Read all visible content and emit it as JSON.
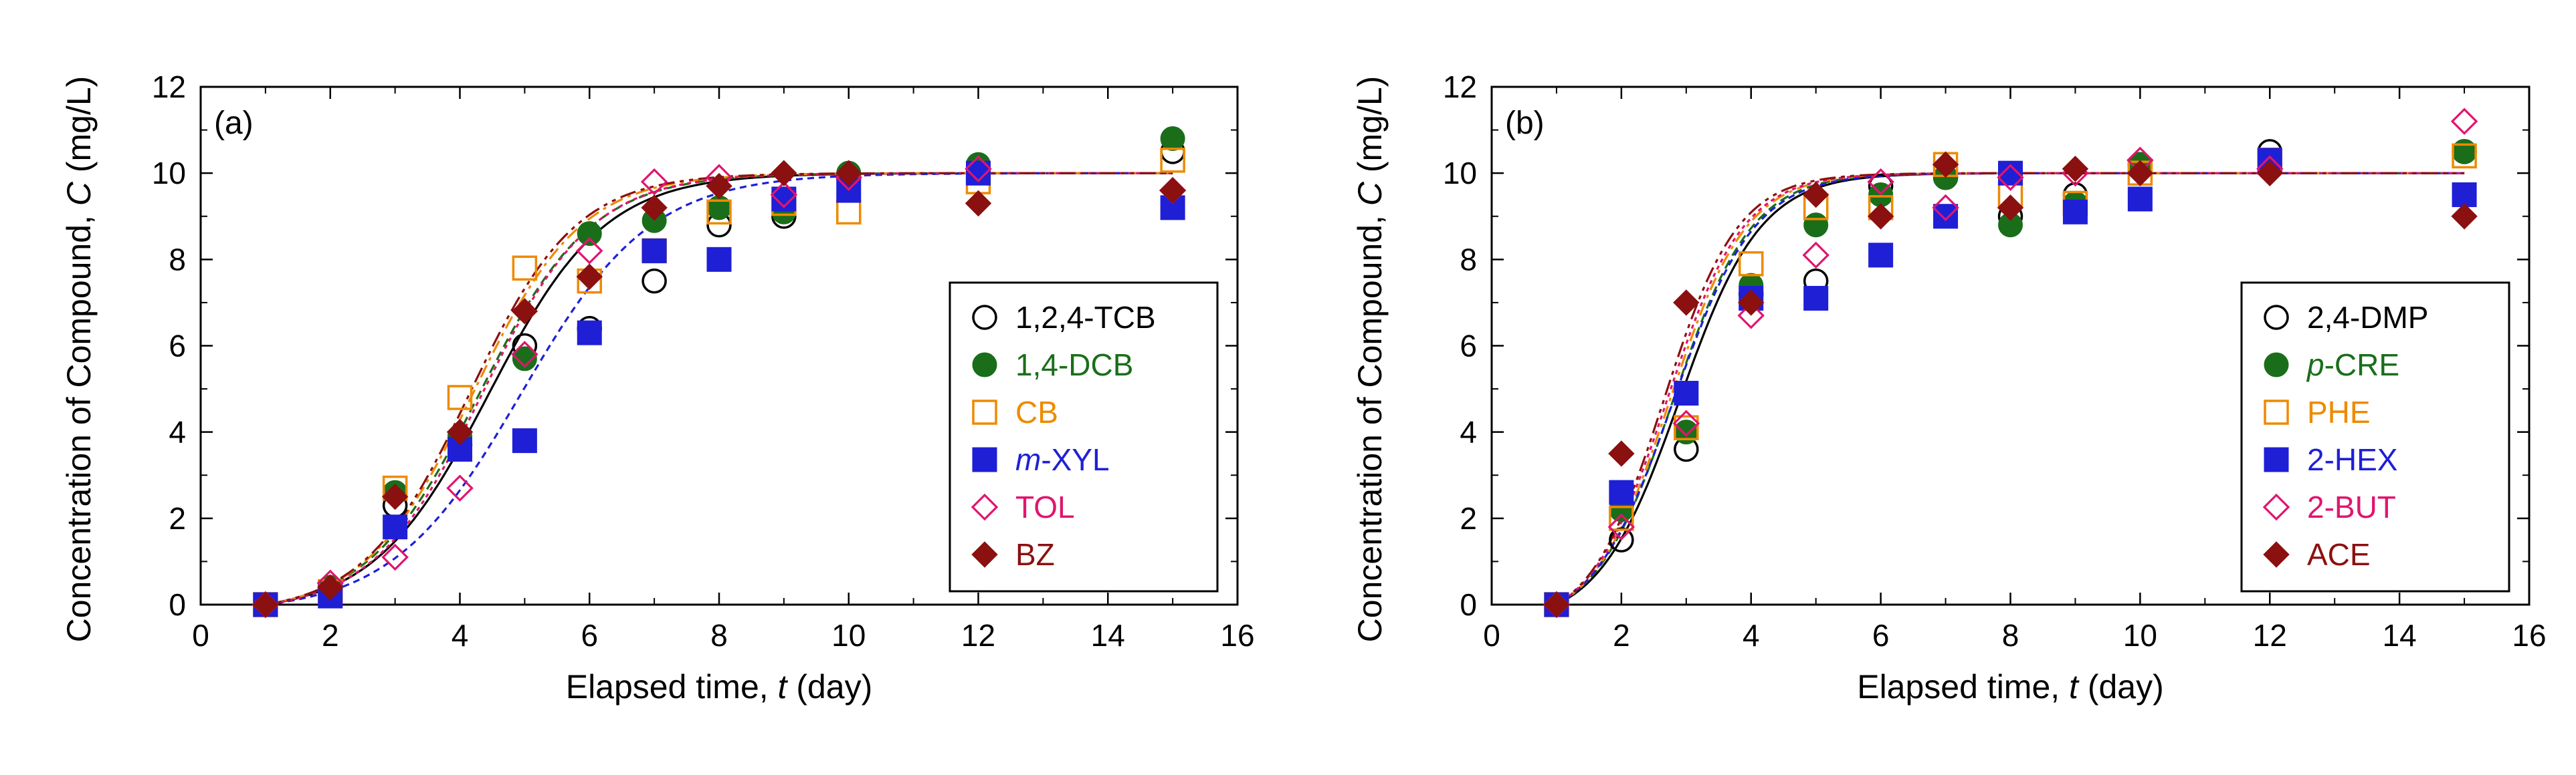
{
  "chart_data": [
    {
      "type": "scatter",
      "panel_label": "(a)",
      "xlabel": {
        "prefix": "Elapsed time, ",
        "italic": "t",
        "suffix": " (day)"
      },
      "ylabel": {
        "prefix": "Concentration of Compound, ",
        "italic": "C",
        "suffix": " (mg/L)"
      },
      "xlim": [
        0,
        16
      ],
      "ylim": [
        0,
        12
      ],
      "xticks": [
        0,
        2,
        4,
        6,
        8,
        10,
        12,
        14,
        16
      ],
      "yticks": [
        0,
        2,
        4,
        6,
        8,
        10,
        12
      ],
      "legend_position": "bottom-right",
      "series": [
        {
          "name": "1,2,4-TCB",
          "italic_prefix": "",
          "label": "1,2,4-TCB",
          "marker": "circle-open",
          "color": "#000000",
          "x": [
            1,
            2,
            3,
            4,
            5,
            6,
            7,
            8,
            9,
            10,
            12,
            15
          ],
          "y": [
            0.0,
            0.3,
            2.3,
            3.7,
            6.0,
            6.4,
            7.5,
            8.8,
            9.0,
            9.9,
            10.1,
            10.5
          ],
          "fit": {
            "k": 1.12,
            "t0": 4.45,
            "dash": ""
          }
        },
        {
          "name": "1,4-DCB",
          "italic_prefix": "",
          "label": "1,4-DCB",
          "marker": "circle-filled",
          "color": "#1a6e1a",
          "x": [
            1,
            2,
            3,
            4,
            5,
            6,
            7,
            8,
            9,
            10,
            12,
            15
          ],
          "y": [
            0.0,
            0.4,
            2.6,
            3.9,
            5.7,
            8.6,
            8.9,
            9.2,
            9.1,
            10.0,
            10.2,
            10.8
          ],
          "fit": {
            "k": 1.15,
            "t0": 4.3,
            "dash": "14 8"
          }
        },
        {
          "name": "CB",
          "italic_prefix": "",
          "label": "CB",
          "marker": "square-open",
          "color": "#ee8a00",
          "x": [
            1,
            2,
            3,
            4,
            5,
            6,
            7,
            8,
            9,
            10,
            12,
            15
          ],
          "y": [
            0.0,
            0.3,
            2.7,
            4.8,
            7.8,
            7.5,
            8.2,
            9.1,
            9.3,
            9.1,
            9.8,
            10.3
          ],
          "fit": {
            "k": 1.2,
            "t0": 4.2,
            "dash": "20 8 5 8"
          }
        },
        {
          "name": "m-XYL",
          "italic_prefix": "m",
          "label": "-XYL",
          "marker": "square-filled",
          "color": "#1f1fd6",
          "x": [
            1,
            2,
            3,
            4,
            5,
            6,
            7,
            8,
            9,
            10,
            12,
            15
          ],
          "y": [
            0.0,
            0.2,
            1.8,
            3.6,
            3.8,
            6.3,
            8.2,
            8.0,
            9.4,
            9.6,
            10.0,
            9.2
          ],
          "fit": {
            "k": 1.0,
            "t0": 4.95,
            "dash": "10 7"
          }
        },
        {
          "name": "TOL",
          "italic_prefix": "",
          "label": "TOL",
          "marker": "diamond-open",
          "color": "#e0156e",
          "x": [
            1,
            2,
            3,
            4,
            5,
            6,
            7,
            8,
            9,
            10,
            12,
            15
          ],
          "y": [
            0.0,
            0.5,
            1.1,
            2.7,
            5.8,
            8.2,
            9.8,
            9.9,
            9.5,
            9.9,
            10.1,
            9.6
          ],
          "fit": {
            "k": 1.18,
            "t0": 4.35,
            "dash": "6 6"
          }
        },
        {
          "name": "BZ",
          "italic_prefix": "",
          "label": "BZ",
          "marker": "diamond-filled",
          "color": "#8b1010",
          "x": [
            1,
            2,
            3,
            4,
            5,
            6,
            7,
            8,
            9,
            10,
            12,
            15
          ],
          "y": [
            0.0,
            0.4,
            2.5,
            4.0,
            6.8,
            7.6,
            9.2,
            9.7,
            10.0,
            10.0,
            9.3,
            9.6
          ],
          "fit": {
            "k": 1.22,
            "t0": 4.15,
            "dash": "24 8 6 8 6 8"
          }
        }
      ]
    },
    {
      "type": "scatter",
      "panel_label": "(b)",
      "xlabel": {
        "prefix": "Elapsed time, ",
        "italic": "t",
        "suffix": " (day)"
      },
      "ylabel": {
        "prefix": "Concentration of Compound, ",
        "italic": "C",
        "suffix": " (mg/L)"
      },
      "xlim": [
        0,
        16
      ],
      "ylim": [
        0,
        12
      ],
      "xticks": [
        0,
        2,
        4,
        6,
        8,
        10,
        12,
        14,
        16
      ],
      "yticks": [
        0,
        2,
        4,
        6,
        8,
        10,
        12
      ],
      "legend_position": "bottom-right",
      "series": [
        {
          "name": "2,4-DMP",
          "italic_prefix": "",
          "label": "2,4-DMP",
          "marker": "circle-open",
          "color": "#000000",
          "x": [
            1,
            2,
            3,
            4,
            5,
            6,
            7,
            8,
            9,
            10,
            12,
            15
          ],
          "y": [
            0.0,
            1.5,
            3.6,
            7.2,
            7.5,
            9.7,
            9.9,
            9.0,
            9.5,
            10.2,
            10.5,
            10.5
          ],
          "fit": {
            "k": 1.6,
            "t0": 2.9,
            "dash": ""
          }
        },
        {
          "name": "p-CRE",
          "italic_prefix": "p",
          "label": "-CRE",
          "marker": "circle-filled",
          "color": "#1a6e1a",
          "x": [
            1,
            2,
            3,
            4,
            5,
            6,
            7,
            8,
            9,
            10,
            12,
            15
          ],
          "y": [
            0.0,
            2.2,
            4.0,
            7.4,
            8.8,
            9.5,
            9.9,
            8.8,
            9.3,
            10.2,
            10.3,
            10.5
          ],
          "fit": {
            "k": 1.65,
            "t0": 2.8,
            "dash": "14 8"
          }
        },
        {
          "name": "PHE",
          "italic_prefix": "",
          "label": "PHE",
          "marker": "square-open",
          "color": "#ee8a00",
          "x": [
            1,
            2,
            3,
            4,
            5,
            6,
            7,
            8,
            9,
            10,
            12,
            15
          ],
          "y": [
            0.0,
            2.0,
            4.1,
            7.9,
            9.2,
            9.2,
            10.2,
            9.5,
            9.3,
            10.0,
            10.3,
            10.4
          ],
          "fit": {
            "k": 1.7,
            "t0": 2.75,
            "dash": "20 8 5 8"
          }
        },
        {
          "name": "2-HEX",
          "italic_prefix": "",
          "label": "2-HEX",
          "marker": "square-filled",
          "color": "#1f1fd6",
          "x": [
            1,
            2,
            3,
            4,
            5,
            6,
            7,
            8,
            9,
            10,
            12,
            15
          ],
          "y": [
            0.0,
            2.6,
            4.9,
            7.1,
            7.1,
            8.1,
            9.0,
            10.0,
            9.1,
            9.4,
            10.3,
            9.5
          ],
          "fit": {
            "k": 1.6,
            "t0": 2.8,
            "dash": "10 7"
          }
        },
        {
          "name": "2-BUT",
          "italic_prefix": "",
          "label": "2-BUT",
          "marker": "diamond-open",
          "color": "#e0156e",
          "x": [
            1,
            2,
            3,
            4,
            5,
            6,
            7,
            8,
            9,
            10,
            12,
            15
          ],
          "y": [
            0.0,
            1.8,
            4.2,
            6.7,
            8.1,
            9.8,
            9.2,
            9.9,
            10.0,
            10.3,
            10.1,
            11.2
          ],
          "fit": {
            "k": 1.7,
            "t0": 2.7,
            "dash": "6 6"
          }
        },
        {
          "name": "ACE",
          "italic_prefix": "",
          "label": "ACE",
          "marker": "diamond-filled",
          "color": "#8b1010",
          "x": [
            1,
            2,
            3,
            4,
            5,
            6,
            7,
            8,
            9,
            10,
            12,
            15
          ],
          "y": [
            0.0,
            3.5,
            7.0,
            7.0,
            9.5,
            9.0,
            10.2,
            9.2,
            10.1,
            10.0,
            10.0,
            9.0
          ],
          "fit": {
            "k": 1.75,
            "t0": 2.65,
            "dash": "24 8 6 8 6 8"
          }
        }
      ]
    }
  ]
}
